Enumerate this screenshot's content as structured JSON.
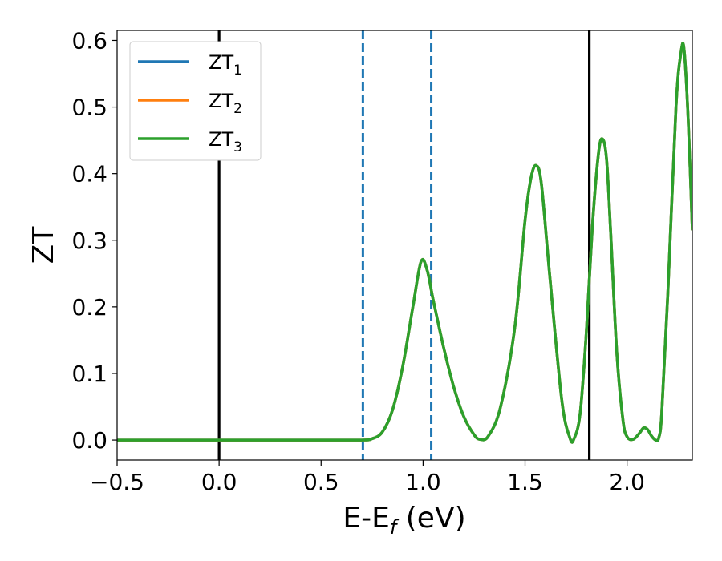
{
  "chart_data": {
    "type": "line",
    "title": "",
    "xlabel_main": "E-E",
    "xlabel_sub": "f",
    "xlabel_unit": " (eV)",
    "ylabel": "ZT",
    "xlim": [
      -0.5,
      2.32
    ],
    "ylim": [
      -0.03,
      0.615
    ],
    "xticks": [
      -0.5,
      0.0,
      0.5,
      1.0,
      1.5,
      2.0
    ],
    "xtick_labels": [
      "−0.5",
      "0.0",
      "0.5",
      "1.0",
      "1.5",
      "2.0"
    ],
    "yticks": [
      0.0,
      0.1,
      0.2,
      0.3,
      0.4,
      0.5,
      0.6
    ],
    "ytick_labels": [
      "0.0",
      "0.1",
      "0.2",
      "0.3",
      "0.4",
      "0.5",
      "0.6"
    ],
    "grid": false,
    "legend_position": "top-left",
    "vlines": [
      {
        "x": 0.0,
        "style": "solid",
        "color": "#000000"
      },
      {
        "x": 1.815,
        "style": "solid",
        "color": "#000000"
      },
      {
        "x": 0.705,
        "style": "dashed",
        "color": "#1f77b4"
      },
      {
        "x": 1.04,
        "style": "dashed",
        "color": "#1f77b4"
      }
    ],
    "x": [
      -0.5,
      0.0,
      0.5,
      0.7,
      0.75,
      0.8,
      0.85,
      0.9,
      0.95,
      0.99,
      1.02,
      1.05,
      1.1,
      1.15,
      1.2,
      1.25,
      1.28,
      1.32,
      1.38,
      1.45,
      1.5,
      1.53,
      1.555,
      1.58,
      1.62,
      1.68,
      1.72,
      1.74,
      1.77,
      1.8,
      1.83,
      1.86,
      1.88,
      1.9,
      1.92,
      1.95,
      1.98,
      2.0,
      2.03,
      2.06,
      2.08,
      2.1,
      2.12,
      2.14,
      2.155,
      2.17,
      2.2,
      2.24,
      2.265,
      2.28,
      2.3,
      2.32
    ],
    "series": [
      {
        "name": "ZT",
        "name_sub": "1",
        "color": "#1f77b4",
        "values": [
          0.0,
          0.0,
          0.0,
          0.0,
          0.002,
          0.012,
          0.045,
          0.11,
          0.2,
          0.268,
          0.255,
          0.21,
          0.14,
          0.08,
          0.035,
          0.008,
          0.001,
          0.006,
          0.05,
          0.17,
          0.33,
          0.395,
          0.412,
          0.385,
          0.25,
          0.06,
          0.003,
          0.002,
          0.04,
          0.16,
          0.32,
          0.43,
          0.452,
          0.42,
          0.31,
          0.13,
          0.03,
          0.005,
          0.001,
          0.01,
          0.018,
          0.016,
          0.006,
          0.0,
          0.003,
          0.04,
          0.22,
          0.5,
          0.583,
          0.585,
          0.48,
          0.315
        ]
      },
      {
        "name": "ZT",
        "name_sub": "2",
        "color": "#ff7f0e",
        "values": [
          0.0,
          0.0,
          0.0,
          0.0,
          0.002,
          0.012,
          0.045,
          0.11,
          0.2,
          0.268,
          0.255,
          0.21,
          0.14,
          0.08,
          0.035,
          0.008,
          0.001,
          0.006,
          0.05,
          0.17,
          0.33,
          0.395,
          0.412,
          0.385,
          0.25,
          0.06,
          0.003,
          0.002,
          0.04,
          0.16,
          0.32,
          0.43,
          0.452,
          0.42,
          0.31,
          0.13,
          0.03,
          0.005,
          0.001,
          0.01,
          0.018,
          0.016,
          0.006,
          0.0,
          0.003,
          0.04,
          0.22,
          0.5,
          0.583,
          0.585,
          0.48,
          0.315
        ]
      },
      {
        "name": "ZT",
        "name_sub": "3",
        "color": "#2ca02c",
        "values": [
          0.0,
          0.0,
          0.0,
          0.0,
          0.002,
          0.012,
          0.045,
          0.11,
          0.2,
          0.268,
          0.255,
          0.21,
          0.14,
          0.08,
          0.035,
          0.008,
          0.001,
          0.006,
          0.05,
          0.17,
          0.33,
          0.395,
          0.412,
          0.385,
          0.25,
          0.06,
          0.003,
          0.002,
          0.04,
          0.16,
          0.32,
          0.43,
          0.452,
          0.42,
          0.31,
          0.13,
          0.03,
          0.005,
          0.001,
          0.01,
          0.018,
          0.016,
          0.006,
          0.0,
          0.003,
          0.04,
          0.22,
          0.5,
          0.583,
          0.585,
          0.48,
          0.315
        ]
      }
    ]
  }
}
